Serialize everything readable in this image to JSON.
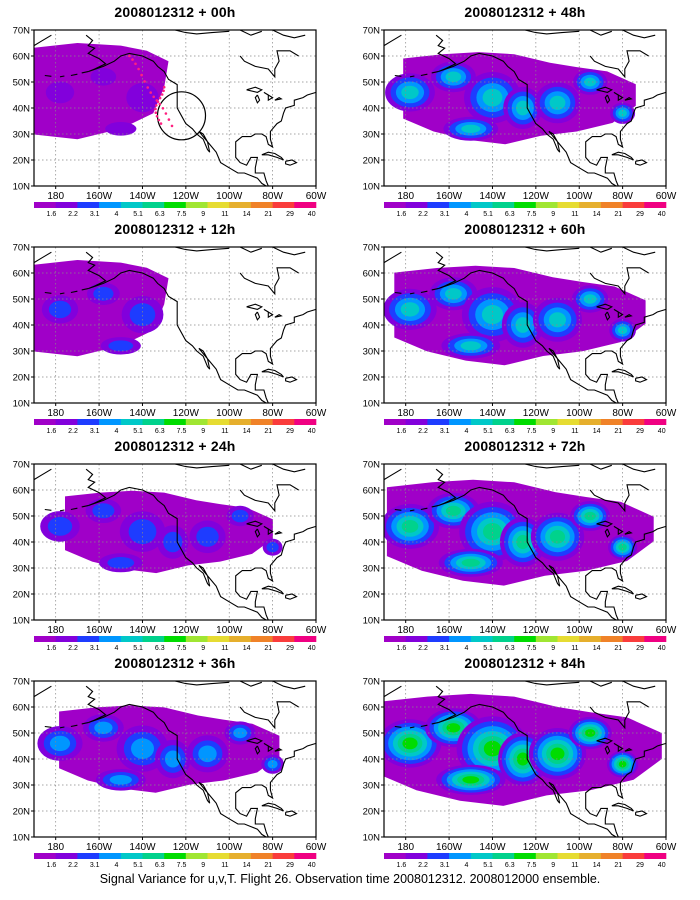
{
  "figure": {
    "caption": "Signal Variance for u,v,T. Flight 26. Observation time 2008012312. 2008012000 ensemble."
  },
  "panels": [
    {
      "title": "2008012312 + 00h",
      "lead_hours": 0,
      "intensity": 0.1,
      "observation_circle": true,
      "flight_track": true
    },
    {
      "title": "2008012312 + 12h",
      "lead_hours": 12,
      "intensity": 0.22,
      "observation_circle": false,
      "flight_track": false
    },
    {
      "title": "2008012312 + 24h",
      "lead_hours": 24,
      "intensity": 0.34,
      "observation_circle": false,
      "flight_track": false
    },
    {
      "title": "2008012312 + 36h",
      "lead_hours": 36,
      "intensity": 0.42,
      "observation_circle": false,
      "flight_track": false
    },
    {
      "title": "2008012312 + 48h",
      "lead_hours": 48,
      "intensity": 0.5,
      "observation_circle": false,
      "flight_track": false
    },
    {
      "title": "2008012312 + 60h",
      "lead_hours": 60,
      "intensity": 0.62,
      "observation_circle": false,
      "flight_track": false
    },
    {
      "title": "2008012312 + 72h",
      "lead_hours": 72,
      "intensity": 0.72,
      "observation_circle": false,
      "flight_track": false
    },
    {
      "title": "2008012312 + 84h",
      "lead_hours": 84,
      "intensity": 0.82,
      "observation_circle": false,
      "flight_track": false
    }
  ],
  "map": {
    "lon_labels": [
      "180",
      "160W",
      "140W",
      "120W",
      "100W",
      "80W",
      "60W"
    ],
    "lat_labels": [
      "10N",
      "20N",
      "30N",
      "40N",
      "50N",
      "60N",
      "70N"
    ]
  },
  "colorbar": {
    "labels": [
      "1.6",
      "2.2",
      "3.1",
      "4",
      "5.1",
      "6.3",
      "7.5",
      "9",
      "11",
      "14",
      "21",
      "29",
      "40"
    ],
    "colors": [
      "#a000c8",
      "#8200dc",
      "#1e3cff",
      "#0096ff",
      "#00c8c8",
      "#00d28c",
      "#00dc00",
      "#a0e632",
      "#e6dc32",
      "#e6af2d",
      "#f08228",
      "#fa3c3c",
      "#f00082"
    ]
  }
}
